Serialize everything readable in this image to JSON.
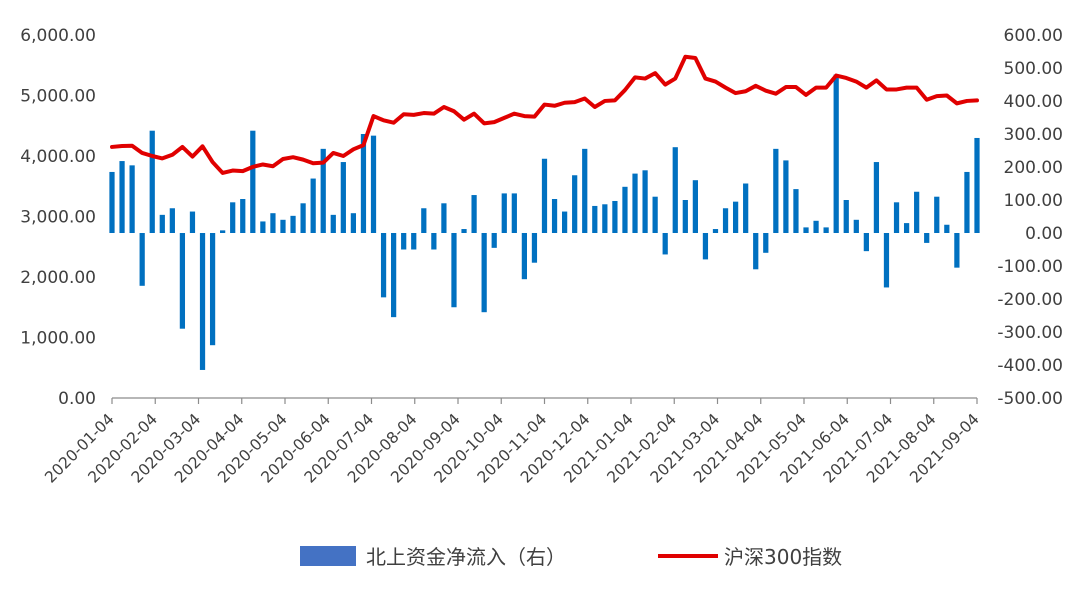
{
  "chart_data": {
    "type": "bar+line",
    "title": "",
    "legend_position": "bottom",
    "grid": false,
    "left_axis": {
      "ylim": [
        0,
        6000
      ],
      "tick_values": [
        0,
        1000,
        2000,
        3000,
        4000,
        5000,
        6000
      ],
      "tick_labels": [
        "0.00",
        "1,000.00",
        "2,000.00",
        "3,000.00",
        "4,000.00",
        "5,000.00",
        "6,000.00"
      ]
    },
    "right_axis": {
      "ylim": [
        -500,
        600
      ],
      "tick_values": [
        -500,
        -400,
        -300,
        -200,
        -100,
        0,
        100,
        200,
        300,
        400,
        500,
        600
      ],
      "tick_labels": [
        "-500.00",
        "-400.00",
        "-300.00",
        "-200.00",
        "-100.00",
        "0.00",
        "100.00",
        "200.00",
        "300.00",
        "400.00",
        "500.00",
        "600.00"
      ]
    },
    "x_axis": {
      "tick_labels": [
        "2020-01-04",
        "2020-02-04",
        "2020-03-04",
        "2020-04-04",
        "2020-05-04",
        "2020-06-04",
        "2020-07-04",
        "2020-08-04",
        "2020-09-04",
        "2020-10-04",
        "2020-11-04",
        "2020-12-04",
        "2021-01-04",
        "2021-02-04",
        "2021-03-04",
        "2021-04-04",
        "2021-05-04",
        "2021-06-04",
        "2021-07-04",
        "2021-08-04",
        "2021-09-04"
      ]
    },
    "series": [
      {
        "name": "北上资金净流入（右）",
        "type": "bar",
        "axis": "right",
        "color": "#0070C0",
        "legend_color": "#4472C4",
        "values": [
          185,
          218,
          205,
          -160,
          310,
          55,
          75,
          -290,
          65,
          -415,
          -340,
          8,
          93,
          103,
          310,
          35,
          60,
          40,
          52,
          90,
          165,
          255,
          55,
          215,
          60,
          300,
          295,
          -195,
          -255,
          -50,
          -50,
          75,
          -50,
          90,
          -225,
          12,
          115,
          -240,
          -45,
          120,
          120,
          -140,
          -90,
          225,
          103,
          65,
          175,
          255,
          82,
          87,
          97,
          140,
          180,
          190,
          110,
          -65,
          260,
          100,
          160,
          -80,
          12,
          75,
          95,
          150,
          -110,
          -60,
          255,
          220,
          133,
          17,
          37,
          17,
          480,
          100,
          40,
          -55,
          215,
          -165,
          93,
          30,
          125,
          -30,
          110,
          25,
          -105,
          185,
          288
        ]
      },
      {
        "name": "沪深300指数",
        "type": "line",
        "axis": "left",
        "color": "#E00000",
        "values": [
          4150,
          4165,
          4170,
          4050,
          4000,
          3960,
          4020,
          4150,
          3990,
          4160,
          3900,
          3720,
          3760,
          3750,
          3820,
          3860,
          3830,
          3950,
          3980,
          3940,
          3880,
          3890,
          4050,
          4000,
          4110,
          4180,
          4660,
          4590,
          4550,
          4690,
          4680,
          4710,
          4700,
          4810,
          4740,
          4600,
          4700,
          4540,
          4560,
          4630,
          4700,
          4660,
          4650,
          4850,
          4830,
          4880,
          4890,
          4950,
          4810,
          4910,
          4920,
          5090,
          5300,
          5280,
          5370,
          5180,
          5280,
          5640,
          5620,
          5280,
          5230,
          5130,
          5040,
          5070,
          5160,
          5080,
          5030,
          5140,
          5140,
          5010,
          5130,
          5130,
          5330,
          5290,
          5230,
          5130,
          5250,
          5100,
          5100,
          5130,
          5130,
          4930,
          4990,
          5000,
          4870,
          4910,
          4920
        ]
      }
    ]
  }
}
